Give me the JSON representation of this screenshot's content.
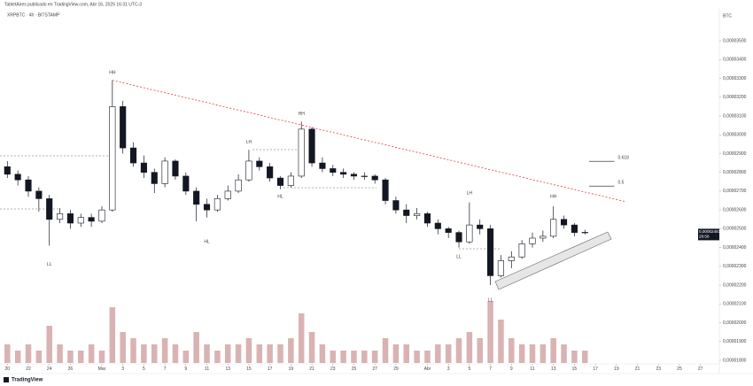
{
  "header": {
    "publisher": "TabletAires publicado en TradingView.com, Abr 16, 2025 16:31 UTC-3",
    "symbol": "XRPBTC · 4h · BITSTAMP",
    "currency": "BTC",
    "footer": "TradingView"
  },
  "chart_data": {
    "type": "candlestick",
    "x": [
      0,
      1,
      2,
      3,
      4,
      5,
      6,
      7,
      8,
      9,
      10,
      11,
      12,
      13,
      14,
      15,
      16,
      17,
      18,
      19,
      20,
      21,
      22,
      23,
      24,
      25,
      26,
      27,
      28,
      29,
      30,
      31,
      32,
      33,
      34,
      35,
      36,
      37,
      38,
      39,
      40,
      41,
      42,
      43,
      44,
      45,
      46,
      47,
      48,
      49,
      50,
      51,
      52,
      53,
      54,
      55
    ],
    "open": [
      2.83e-05,
      2.79e-05,
      2.76e-05,
      2.7e-05,
      2.66e-05,
      2.55e-05,
      2.58e-05,
      2.53e-05,
      2.56e-05,
      2.54e-05,
      2.6e-05,
      3.15e-05,
      2.93e-05,
      2.85e-05,
      2.8e-05,
      2.74e-05,
      2.86e-05,
      2.78e-05,
      2.7e-05,
      2.63e-05,
      2.6e-05,
      2.66e-05,
      2.7e-05,
      2.76e-05,
      2.86e-05,
      2.83e-05,
      2.77e-05,
      2.73e-05,
      2.78e-05,
      3.03e-05,
      2.85e-05,
      2.82e-05,
      2.8e-05,
      2.79e-05,
      2.78e-05,
      2.78e-05,
      2.76e-05,
      2.65e-05,
      2.6e-05,
      2.57e-05,
      2.58e-05,
      2.53e-05,
      2.5e-05,
      2.48e-05,
      2.43e-05,
      2.52e-05,
      2.5e-05,
      2.25e-05,
      2.33e-05,
      2.35e-05,
      2.42e-05,
      2.45e-05,
      2.46e-05,
      2.55e-05,
      2.52e-05,
      2.48e-05
    ],
    "high": [
      2.86e-05,
      2.81e-05,
      2.78e-05,
      2.72e-05,
      2.68e-05,
      2.61e-05,
      2.6e-05,
      2.58e-05,
      2.58e-05,
      2.62e-05,
      3.29e-05,
      3.18e-05,
      2.96e-05,
      2.89e-05,
      2.82e-05,
      2.88e-05,
      2.87e-05,
      2.8e-05,
      2.72e-05,
      2.66e-05,
      2.68e-05,
      2.73e-05,
      2.79e-05,
      2.92e-05,
      2.88e-05,
      2.85e-05,
      2.78e-05,
      2.8e-05,
      3.07e-05,
      3.04e-05,
      2.88e-05,
      2.84e-05,
      2.82e-05,
      2.8e-05,
      2.8e-05,
      2.79e-05,
      2.77e-05,
      2.67e-05,
      2.63e-05,
      2.61e-05,
      2.59e-05,
      2.55e-05,
      2.51e-05,
      2.49e-05,
      2.64e-05,
      2.55e-05,
      2.52e-05,
      2.36e-05,
      2.38e-05,
      2.44e-05,
      2.48e-05,
      2.49e-05,
      2.62e-05,
      2.57e-05,
      2.53e-05,
      2.495e-05
    ],
    "low": [
      2.77e-05,
      2.73e-05,
      2.67e-05,
      2.59e-05,
      2.41e-05,
      2.53e-05,
      2.5e-05,
      2.51e-05,
      2.51e-05,
      2.53e-05,
      2.59e-05,
      2.9e-05,
      2.83e-05,
      2.77e-05,
      2.69e-05,
      2.72e-05,
      2.76e-05,
      2.68e-05,
      2.54e-05,
      2.56e-05,
      2.59e-05,
      2.65e-05,
      2.69e-05,
      2.75e-05,
      2.81e-05,
      2.75e-05,
      2.71e-05,
      2.72e-05,
      2.77e-05,
      2.83e-05,
      2.8e-05,
      2.78e-05,
      2.77e-05,
      2.76e-05,
      2.76e-05,
      2.74e-05,
      2.63e-05,
      2.58e-05,
      2.53e-05,
      2.55e-05,
      2.51e-05,
      2.47e-05,
      2.45e-05,
      2.4e-05,
      2.42e-05,
      2.47e-05,
      2.2e-05,
      2.24e-05,
      2.29e-05,
      2.34e-05,
      2.4e-05,
      2.43e-05,
      2.45e-05,
      2.5e-05,
      2.46e-05,
      2.47e-05
    ],
    "close": [
      2.79e-05,
      2.76e-05,
      2.7e-05,
      2.66e-05,
      2.55e-05,
      2.58e-05,
      2.53e-05,
      2.56e-05,
      2.54e-05,
      2.6e-05,
      3.15e-05,
      2.93e-05,
      2.85e-05,
      2.8e-05,
      2.74e-05,
      2.86e-05,
      2.78e-05,
      2.7e-05,
      2.63e-05,
      2.6e-05,
      2.66e-05,
      2.7e-05,
      2.76e-05,
      2.86e-05,
      2.83e-05,
      2.77e-05,
      2.73e-05,
      2.78e-05,
      3.03e-05,
      2.85e-05,
      2.82e-05,
      2.8e-05,
      2.79e-05,
      2.78e-05,
      2.78e-05,
      2.76e-05,
      2.65e-05,
      2.6e-05,
      2.57e-05,
      2.58e-05,
      2.53e-05,
      2.5e-05,
      2.48e-05,
      2.43e-05,
      2.52e-05,
      2.5e-05,
      2.25e-05,
      2.33e-05,
      2.35e-05,
      2.42e-05,
      2.45e-05,
      2.46e-05,
      2.55e-05,
      2.52e-05,
      2.48e-05,
      2.481e-05
    ],
    "volume": [
      3,
      2,
      3,
      2,
      6,
      3,
      2,
      2,
      3,
      2,
      9,
      5,
      4,
      3,
      3,
      4,
      3,
      2,
      5,
      3,
      2,
      3,
      3,
      4,
      3,
      3,
      3,
      4,
      8,
      5,
      3,
      2,
      2,
      2,
      2,
      2,
      4,
      3,
      3,
      2,
      2,
      3,
      3,
      4,
      5,
      4,
      10,
      7,
      4,
      3,
      3,
      3,
      4,
      3,
      2,
      2
    ],
    "up_color": "#ffffff",
    "down_color": "#131722",
    "volume_color": "#d9b3b3",
    "xlim": [
      -0.7,
      67.8
    ],
    "xticks": [
      {
        "value": 0,
        "label": "20"
      },
      {
        "value": 2,
        "label": "22"
      },
      {
        "value": 4,
        "label": "24"
      },
      {
        "value": 6,
        "label": "26"
      },
      {
        "value": 9,
        "label": "Mar"
      },
      {
        "value": 11,
        "label": "3"
      },
      {
        "value": 13,
        "label": "5"
      },
      {
        "value": 15,
        "label": "7"
      },
      {
        "value": 17,
        "label": "9"
      },
      {
        "value": 19,
        "label": "11"
      },
      {
        "value": 21,
        "label": "13"
      },
      {
        "value": 23,
        "label": "15"
      },
      {
        "value": 25,
        "label": "17"
      },
      {
        "value": 27,
        "label": "19"
      },
      {
        "value": 29,
        "label": "21"
      },
      {
        "value": 31,
        "label": "23"
      },
      {
        "value": 33,
        "label": "25"
      },
      {
        "value": 35,
        "label": "27"
      },
      {
        "value": 37,
        "label": "29"
      },
      {
        "value": 40,
        "label": "Abr"
      },
      {
        "value": 42,
        "label": "3"
      },
      {
        "value": 44,
        "label": "5"
      },
      {
        "value": 46,
        "label": "7"
      },
      {
        "value": 48,
        "label": "9"
      },
      {
        "value": 50,
        "label": "11"
      },
      {
        "value": 52,
        "label": "13"
      },
      {
        "value": 54,
        "label": "15"
      },
      {
        "value": 56,
        "label": "17"
      },
      {
        "value": 58,
        "label": "19"
      },
      {
        "value": 60,
        "label": "21"
      },
      {
        "value": 62,
        "label": "23"
      },
      {
        "value": 64,
        "label": "25"
      },
      {
        "value": 66,
        "label": "27"
      }
    ],
    "ylim": [
      1.748e-05,
      3.67e-05
    ],
    "yticks": [
      {
        "value": 1.8e-05,
        "label": "0,00001800"
      },
      {
        "value": 1.9e-05,
        "label": "0,00001900"
      },
      {
        "value": 2e-05,
        "label": "0,00002000"
      },
      {
        "value": 2.1e-05,
        "label": "0,00002100"
      },
      {
        "value": 2.2e-05,
        "label": "0,00002200"
      },
      {
        "value": 2.3e-05,
        "label": "0,00002300"
      },
      {
        "value": 2.4e-05,
        "label": "0,00002400"
      },
      {
        "value": 2.5e-05,
        "label": "0,00002500"
      },
      {
        "value": 2.6e-05,
        "label": "0,00002600"
      },
      {
        "value": 2.7e-05,
        "label": "0,00002700"
      },
      {
        "value": 2.8e-05,
        "label": "0,00002800"
      },
      {
        "value": 2.9e-05,
        "label": "0,00002900"
      },
      {
        "value": 3e-05,
        "label": "0,00003000"
      },
      {
        "value": 3.1e-05,
        "label": "0,00003100"
      },
      {
        "value": 3.2e-05,
        "label": "0,00003200"
      },
      {
        "value": 3.3e-05,
        "label": "0,00003300"
      },
      {
        "value": 3.4e-05,
        "label": "0,00003400"
      },
      {
        "value": 3.5e-05,
        "label": "0,00003500"
      }
    ],
    "annotations": [
      {
        "text": "HH",
        "x": 10,
        "y": 3.33e-05
      },
      {
        "text": "LL",
        "x": 4,
        "y": 2.31e-05
      },
      {
        "text": "HL",
        "x": 19,
        "y": 2.43e-05
      },
      {
        "text": "LH",
        "x": 23,
        "y": 2.96e-05
      },
      {
        "text": "HL",
        "x": 26,
        "y": 2.67e-05
      },
      {
        "text": "HH",
        "x": 28,
        "y": 3.11e-05
      },
      {
        "text": "LL",
        "x": 43,
        "y": 2.35e-05
      },
      {
        "text": "LH",
        "x": 44,
        "y": 2.69e-05
      },
      {
        "text": "LL",
        "x": 46,
        "y": 2.12e-05
      },
      {
        "text": "HH",
        "x": 52,
        "y": 2.67e-05
      }
    ],
    "trendline": {
      "x": [
        10,
        58.8
      ],
      "y": [
        3.29e-05,
        2.645e-05
      ],
      "color": "#f23645"
    },
    "levels": [
      {
        "label": "0.618",
        "value": 2.859e-05,
        "x": [
          55.4,
          57.8
        ]
      },
      {
        "label": "0.5",
        "value": 2.727e-05,
        "x": [
          55.4,
          57.8
        ]
      }
    ],
    "price_label": {
      "value": 2.481e-05,
      "label": "0,00002481",
      "countdown": "28:56",
      "color": "#131722"
    }
  }
}
